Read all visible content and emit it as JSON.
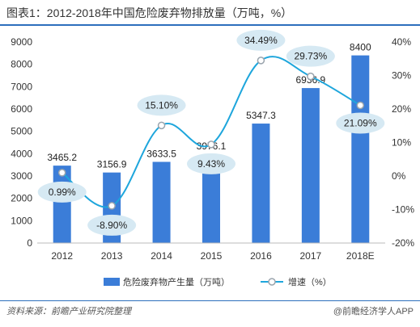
{
  "title": "图表1：2012-2018年中国危险废弃物排放量（万吨，%）",
  "source": "资料来源：前瞻产业研究院整理",
  "brand": "@前瞻经济学人APP",
  "colors": {
    "bar": "#3b7dd8",
    "line": "#1ea6dc",
    "bubble": "#d6e9f3",
    "accent": "#2d6fbd"
  },
  "chart_data": {
    "type": "bar",
    "categories": [
      "2012",
      "2013",
      "2014",
      "2015",
      "2016",
      "2017",
      "2018E"
    ],
    "series": [
      {
        "name": "危险废弃物产生量（万吨）",
        "type": "bar",
        "axis": "left",
        "values": [
          3465.2,
          3156.9,
          3633.5,
          3976.1,
          5347.3,
          6936.9,
          8400
        ],
        "labels": [
          "3465.2",
          "3156.9",
          "3633.5",
          "3976.1",
          "5347.3",
          "6936.9",
          "8400"
        ]
      },
      {
        "name": "增速（%）",
        "type": "line",
        "axis": "right",
        "values": [
          0.99,
          -8.9,
          15.1,
          9.43,
          34.49,
          29.73,
          21.09
        ],
        "labels": [
          "0.99%",
          "-8.90%",
          "15.10%",
          "9.43%",
          "34.49%",
          "29.73%",
          "21.09%"
        ]
      }
    ],
    "y_left": {
      "min": 0,
      "max": 9000,
      "step": 1000,
      "ticks": [
        "0",
        "1000",
        "2000",
        "3000",
        "4000",
        "5000",
        "6000",
        "7000",
        "8000",
        "9000"
      ]
    },
    "y_right": {
      "min": -20,
      "max": 40,
      "step": 10,
      "ticks": [
        "-20%",
        "-10%",
        "0%",
        "10%",
        "20%",
        "30%",
        "40%"
      ]
    },
    "legend_position": "bottom",
    "grid": false
  }
}
